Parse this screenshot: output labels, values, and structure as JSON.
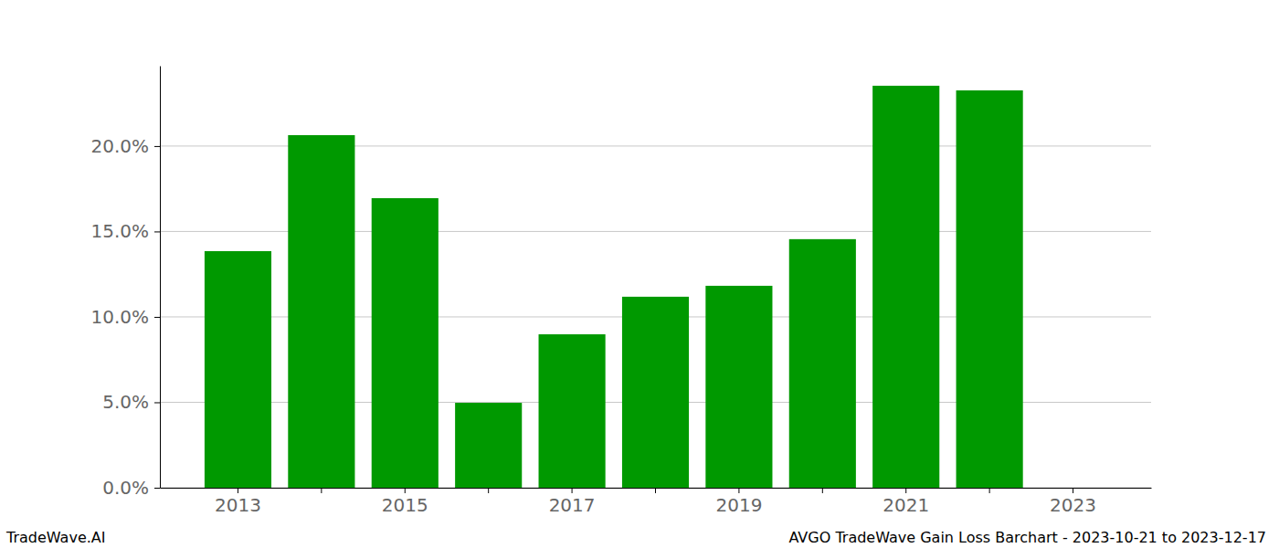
{
  "chart_data": {
    "type": "bar",
    "title": "AVGO TradeWave Gain Loss Barchart - 2023-10-21 to 2023-12-17",
    "annotations": [
      "TradeWave.AI"
    ],
    "categories": [
      "2013",
      null,
      "2015",
      null,
      "2017",
      null,
      "2019",
      null,
      "2021",
      null,
      "2023"
    ],
    "values": [
      13.85,
      20.64,
      16.95,
      4.97,
      8.98,
      11.18,
      11.82,
      14.55,
      23.53,
      23.26,
      null
    ],
    "color": "#009900",
    "ylim": [
      0,
      24.7
    ],
    "yticks": [
      {
        "value": 0,
        "label": "0.0%"
      },
      {
        "value": 5,
        "label": "5.0%"
      },
      {
        "value": 10,
        "label": "10.0%"
      },
      {
        "value": 15,
        "label": "15.0%"
      },
      {
        "value": 20,
        "label": "20.0%"
      }
    ],
    "grid": true
  }
}
